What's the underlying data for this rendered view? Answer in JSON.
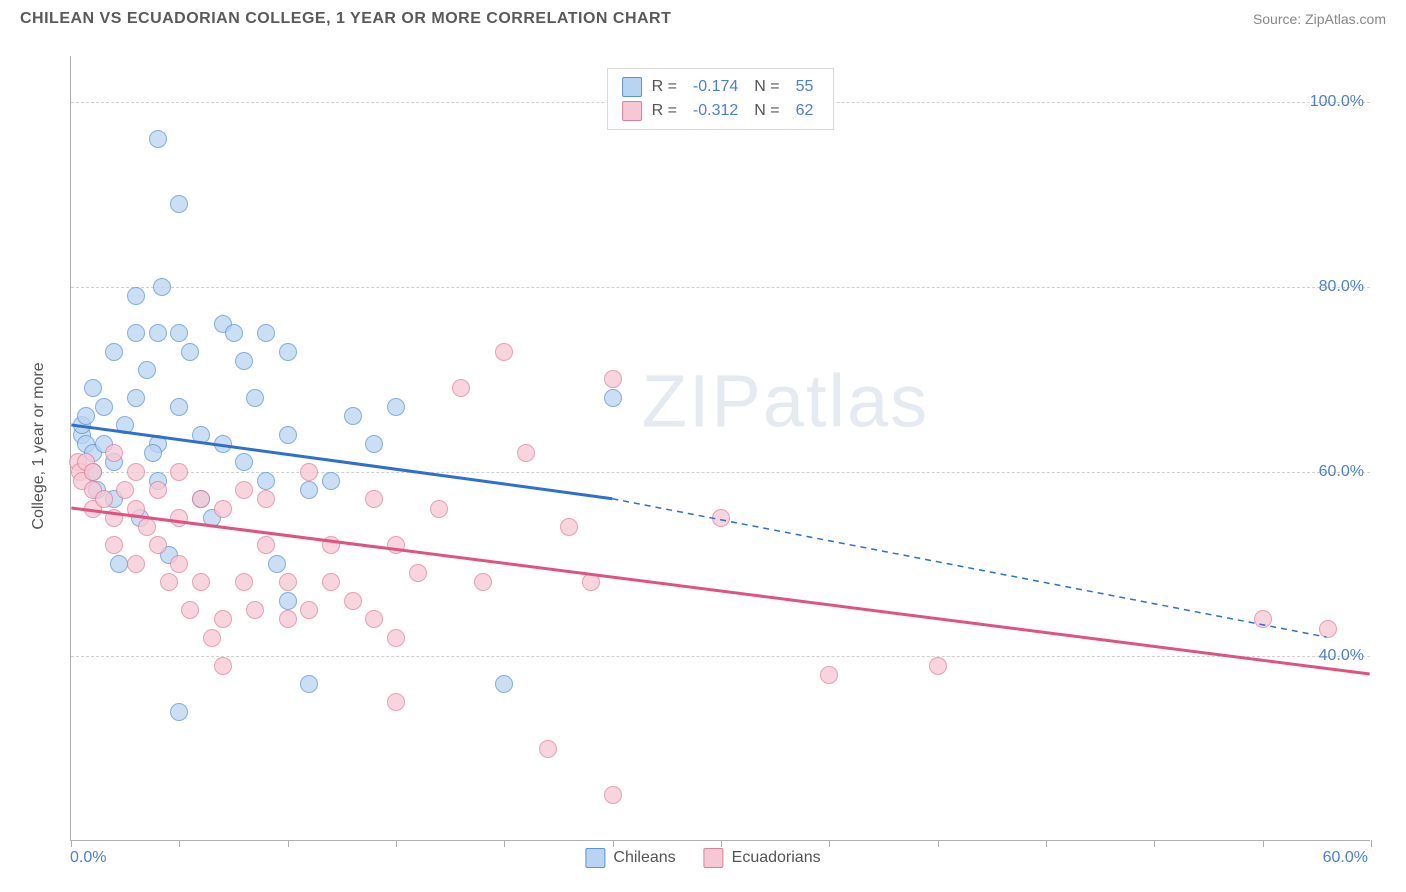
{
  "header": {
    "title": "CHILEAN VS ECUADORIAN COLLEGE, 1 YEAR OR MORE CORRELATION CHART",
    "source": "Source: ZipAtlas.com"
  },
  "watermark": "ZIPatlas",
  "chart": {
    "type": "scatter",
    "ylabel": "College, 1 year or more",
    "xlim": [
      0,
      60
    ],
    "ylim": [
      20,
      105
    ],
    "xtick_positions": [
      0,
      5,
      10,
      15,
      20,
      25,
      30,
      35,
      40,
      45,
      50,
      55,
      60
    ],
    "xtick_labels": {
      "0": "0.0%",
      "60": "60.0%"
    },
    "ytick_positions": [
      40,
      60,
      80,
      100
    ],
    "ytick_labels": {
      "40": "40.0%",
      "60": "60.0%",
      "80": "80.0%",
      "100": "100.0%"
    },
    "grid_color": "#d0d0d0",
    "background_color": "#ffffff",
    "axis_color": "#b0b0b0",
    "point_radius": 9,
    "ylabel_fontsize": 16,
    "tick_fontsize": 16,
    "tick_color": "#4a7fd8",
    "series": [
      {
        "name": "Chileans",
        "fill": "#b9d4f1",
        "stroke": "#5a94d8",
        "line_color": "#2e6fd0",
        "R": "-0.174",
        "N": "55",
        "trend": {
          "x1": 0,
          "y1": 65,
          "x2": 25,
          "y2": 57,
          "dash_x2": 58,
          "dash_y2": 42
        },
        "points": [
          [
            0.5,
            64
          ],
          [
            0.5,
            65
          ],
          [
            0.7,
            63
          ],
          [
            0.7,
            66
          ],
          [
            1,
            62
          ],
          [
            1,
            69
          ],
          [
            1,
            60
          ],
          [
            1.2,
            58
          ],
          [
            1.5,
            67
          ],
          [
            1.5,
            63
          ],
          [
            2,
            73
          ],
          [
            2,
            61
          ],
          [
            2,
            57
          ],
          [
            2.5,
            65
          ],
          [
            3,
            75
          ],
          [
            3,
            68
          ],
          [
            3,
            79
          ],
          [
            3.5,
            71
          ],
          [
            4,
            75
          ],
          [
            4,
            63
          ],
          [
            4,
            59
          ],
          [
            4,
            96
          ],
          [
            4.5,
            51
          ],
          [
            5,
            75
          ],
          [
            5,
            67
          ],
          [
            5,
            89
          ],
          [
            5.5,
            73
          ],
          [
            6,
            64
          ],
          [
            6,
            57
          ],
          [
            7,
            76
          ],
          [
            7,
            63
          ],
          [
            7.5,
            75
          ],
          [
            8,
            72
          ],
          [
            8,
            61
          ],
          [
            9,
            75
          ],
          [
            9,
            59
          ],
          [
            9.5,
            50
          ],
          [
            10,
            73
          ],
          [
            10,
            64
          ],
          [
            10,
            46
          ],
          [
            11,
            37
          ],
          [
            11,
            58
          ],
          [
            12,
            59
          ],
          [
            13,
            66
          ],
          [
            14,
            63
          ],
          [
            15,
            67
          ],
          [
            20,
            37
          ],
          [
            5,
            34
          ],
          [
            3.2,
            55
          ],
          [
            2.2,
            50
          ],
          [
            25,
            68
          ],
          [
            6.5,
            55
          ],
          [
            8.5,
            68
          ],
          [
            4.2,
            80
          ],
          [
            3.8,
            62
          ]
        ]
      },
      {
        "name": "Ecuadorians",
        "fill": "#f6c8d4",
        "stroke": "#e07f9c",
        "line_color": "#e0537f",
        "R": "-0.312",
        "N": "62",
        "trend": {
          "x1": 0,
          "y1": 56,
          "x2": 60,
          "y2": 38
        },
        "points": [
          [
            0.3,
            61
          ],
          [
            0.4,
            60
          ],
          [
            0.5,
            59
          ],
          [
            0.7,
            61
          ],
          [
            1,
            60
          ],
          [
            1,
            58
          ],
          [
            1,
            56
          ],
          [
            1.5,
            57
          ],
          [
            2,
            62
          ],
          [
            2,
            55
          ],
          [
            2,
            52
          ],
          [
            2.5,
            58
          ],
          [
            3,
            60
          ],
          [
            3,
            56
          ],
          [
            3,
            50
          ],
          [
            3.5,
            54
          ],
          [
            4,
            58
          ],
          [
            4,
            52
          ],
          [
            4.5,
            48
          ],
          [
            5,
            55
          ],
          [
            5,
            50
          ],
          [
            5,
            60
          ],
          [
            5.5,
            45
          ],
          [
            6,
            57
          ],
          [
            6,
            48
          ],
          [
            6.5,
            42
          ],
          [
            7,
            56
          ],
          [
            7,
            44
          ],
          [
            7,
            39
          ],
          [
            8,
            48
          ],
          [
            8,
            58
          ],
          [
            8.5,
            45
          ],
          [
            9,
            57
          ],
          [
            9,
            52
          ],
          [
            10,
            44
          ],
          [
            10,
            48
          ],
          [
            11,
            60
          ],
          [
            11,
            45
          ],
          [
            12,
            52
          ],
          [
            12,
            48
          ],
          [
            13,
            46
          ],
          [
            14,
            57
          ],
          [
            14,
            44
          ],
          [
            15,
            52
          ],
          [
            15,
            35
          ],
          [
            16,
            49
          ],
          [
            17,
            56
          ],
          [
            18,
            69
          ],
          [
            19,
            48
          ],
          [
            20,
            73
          ],
          [
            21,
            62
          ],
          [
            22,
            30
          ],
          [
            23,
            54
          ],
          [
            24,
            48
          ],
          [
            25,
            70
          ],
          [
            25,
            25
          ],
          [
            30,
            55
          ],
          [
            35,
            38
          ],
          [
            40,
            39
          ],
          [
            55,
            44
          ],
          [
            58,
            43
          ],
          [
            15,
            42
          ]
        ]
      }
    ]
  },
  "legend_bottom": [
    {
      "label": "Chileans",
      "fill": "#b9d4f1",
      "stroke": "#5a94d8"
    },
    {
      "label": "Ecuadorians",
      "fill": "#f6c8d4",
      "stroke": "#e07f9c"
    }
  ]
}
